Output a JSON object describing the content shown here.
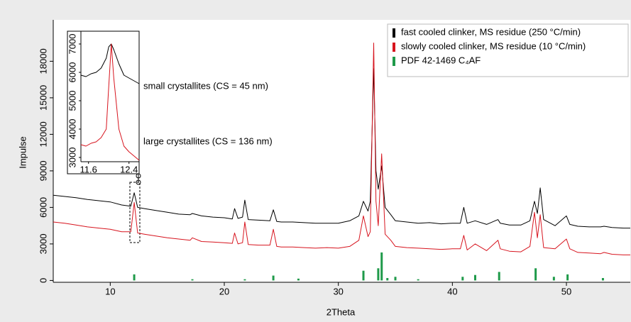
{
  "chart_data": [
    {
      "type": "line",
      "x_label": "2Theta",
      "y_label": "Impulse",
      "xlim": [
        5,
        55.6
      ],
      "ylim": [
        -150,
        21400
      ],
      "xticks": [
        10,
        20,
        30,
        40,
        50
      ],
      "yticks": [
        0,
        3000,
        6000,
        9000,
        12000,
        15000,
        18000
      ],
      "x": [
        5,
        6,
        7,
        8,
        9,
        10,
        11,
        11.8,
        12.1,
        12.4,
        13,
        14,
        15,
        16,
        17,
        17.2,
        18,
        19,
        20,
        20.7,
        20.9,
        21.2,
        21.6,
        21.8,
        22.1,
        23,
        24,
        24.3,
        24.6,
        25,
        26,
        27,
        28,
        29,
        30,
        31,
        31.8,
        32.2,
        32.6,
        32.8,
        33.1,
        33.3,
        33.5,
        33.8,
        34.1,
        34.6,
        35,
        36,
        37,
        38,
        39,
        40,
        40.7,
        41,
        41.3,
        42,
        43,
        44,
        44.2,
        45,
        46,
        46.8,
        47.2,
        47.45,
        47.7,
        48,
        49,
        50,
        50.3,
        51,
        52,
        53,
        53.3,
        54,
        55,
        55.6
      ],
      "series": [
        {
          "name": "fast cooled clinker, MS residue (250 °C/min)",
          "color": "#000000",
          "values": [
            7000,
            6900,
            6800,
            6650,
            6550,
            6450,
            6200,
            6100,
            7200,
            6000,
            5900,
            5750,
            5600,
            5450,
            5400,
            5500,
            5300,
            5200,
            5150,
            5050,
            5900,
            5100,
            5200,
            6600,
            5000,
            4950,
            4900,
            5800,
            4850,
            4800,
            4800,
            4750,
            4700,
            4700,
            4700,
            4900,
            5300,
            6500,
            5700,
            6500,
            17400,
            9000,
            7500,
            9400,
            6000,
            5400,
            4900,
            4800,
            4700,
            4750,
            4650,
            4700,
            4700,
            6000,
            4700,
            4900,
            4600,
            5000,
            4700,
            4550,
            4550,
            4900,
            6500,
            5500,
            7600,
            5000,
            4500,
            5300,
            4600,
            4450,
            4400,
            4400,
            4450,
            4350,
            4300,
            4300
          ]
        },
        {
          "name": "slowly cooled clinker, MS residue (10 °C/min)",
          "color": "#d7141e",
          "values": [
            4800,
            4700,
            4550,
            4400,
            4300,
            4200,
            4000,
            4000,
            6400,
            3900,
            3800,
            3650,
            3500,
            3400,
            3300,
            3500,
            3200,
            3150,
            3100,
            3050,
            3900,
            3000,
            3100,
            4800,
            2950,
            2900,
            2900,
            4200,
            2800,
            2750,
            2750,
            2700,
            2650,
            2700,
            2650,
            2800,
            3300,
            5300,
            3600,
            4000,
            19500,
            6500,
            4500,
            10400,
            3800,
            3300,
            2800,
            2700,
            2650,
            2600,
            2550,
            2600,
            2600,
            3700,
            2500,
            3000,
            2450,
            3300,
            2600,
            2400,
            2350,
            2800,
            5600,
            3500,
            5400,
            2700,
            2600,
            3400,
            2600,
            2300,
            2250,
            2200,
            2300,
            2150,
            2100,
            2100
          ]
        },
        {
          "name": "PDF 42-1469 C₄AF",
          "color": "#1f9a4a",
          "type": "bar",
          "x": [
            12.1,
            17.2,
            21.8,
            24.3,
            26.5,
            32.2,
            33.5,
            33.8,
            34.3,
            35,
            37,
            40.9,
            42,
            44.1,
            47.3,
            48.9,
            50.1,
            53.2
          ],
          "values": [
            500,
            100,
            100,
            400,
            150,
            800,
            1000,
            2300,
            200,
            300,
            100,
            300,
            450,
            700,
            1000,
            300,
            500,
            200
          ]
        }
      ],
      "annotations": [
        {
          "text": "small crystallites (CS = 45 nm)",
          "color": "#000000"
        },
        {
          "text": "large crystallites (CS = 136 nm)",
          "color": "#d7141e"
        }
      ]
    },
    {
      "type": "line",
      "xlim": [
        11.45,
        12.6
      ],
      "ylim": [
        2850,
        7450
      ],
      "xticks": [
        11.6,
        12.4
      ],
      "yticks": [
        3000,
        4000,
        5000,
        6000,
        7000
      ],
      "x": [
        11.45,
        11.55,
        11.65,
        11.75,
        11.85,
        11.95,
        12.0,
        12.05,
        12.1,
        12.2,
        12.3,
        12.4,
        12.5,
        12.6
      ],
      "series": [
        {
          "color": "#000000",
          "values": [
            5900,
            5850,
            5950,
            6000,
            6150,
            6500,
            6900,
            7000,
            6800,
            6300,
            5900,
            5800,
            5700,
            5600
          ]
        },
        {
          "color": "#d7141e",
          "values": [
            3450,
            3400,
            3500,
            3550,
            3700,
            4000,
            5500,
            7000,
            5800,
            4000,
            3400,
            3200,
            3050,
            2900
          ]
        }
      ]
    }
  ]
}
